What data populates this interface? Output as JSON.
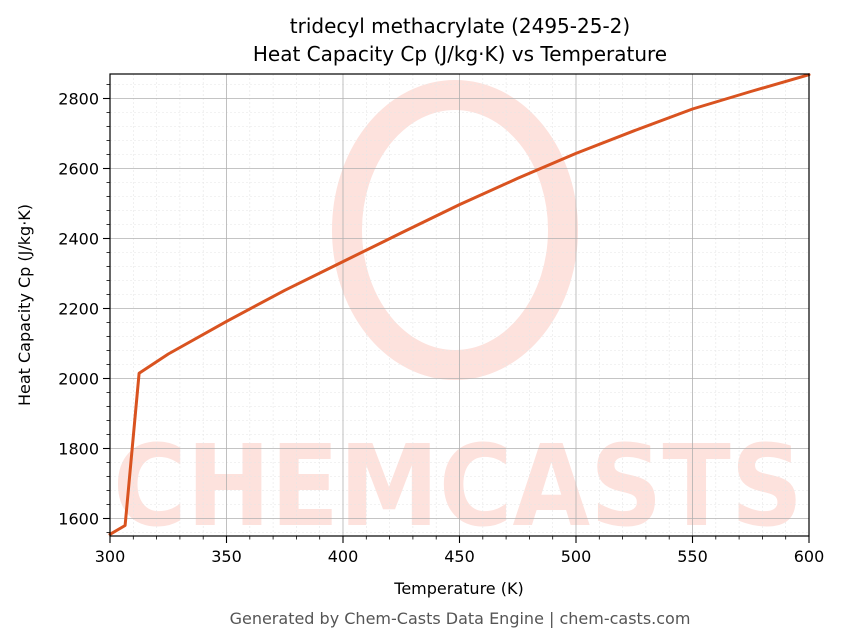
{
  "chart_data": {
    "type": "line",
    "title_line1": "tridecyl methacrylate (2495-25-2)",
    "title_line2": "Heat Capacity Cp (J/kg·K) vs Temperature",
    "xlabel": "Temperature (K)",
    "ylabel": "Heat Capacity Cp (J/kg·K)",
    "xlim": [
      300,
      600
    ],
    "ylim": [
      1550,
      2870
    ],
    "x_ticks": [
      300,
      350,
      400,
      450,
      500,
      550,
      600
    ],
    "y_ticks": [
      1600,
      1800,
      2000,
      2200,
      2400,
      2600,
      2800
    ],
    "grid": true,
    "series": [
      {
        "color": "#d95320",
        "x": [
          300,
          306.5,
          312.5,
          325,
          350,
          375,
          400,
          425,
          450,
          475,
          500,
          525,
          550,
          575,
          600
        ],
        "y": [
          1555,
          1580,
          2015,
          2070,
          2163,
          2252,
          2334,
          2416,
          2497,
          2572,
          2643,
          2708,
          2770,
          2820,
          2868
        ]
      }
    ]
  },
  "watermark": {
    "text": "CHEMCASTS",
    "color": "#fde2dd"
  },
  "footer": "Generated by Chem-Casts Data Engine | chem-casts.com"
}
